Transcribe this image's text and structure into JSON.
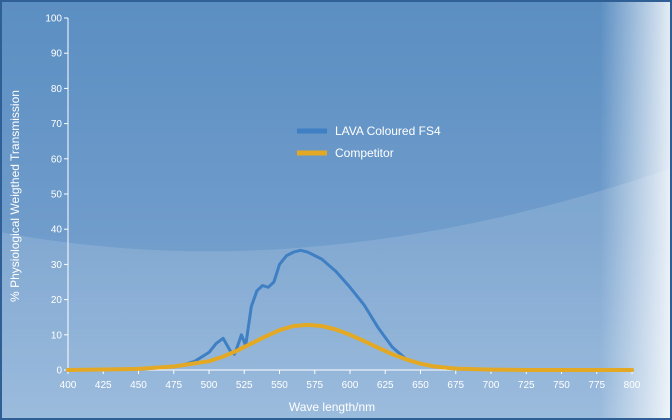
{
  "chart_data": {
    "type": "line",
    "xlabel": "Wave length/nm",
    "ylabel": "% Physiological Weigthed Transmission",
    "xlim": [
      400,
      800
    ],
    "ylim": [
      0,
      100
    ],
    "x_ticks": [
      400,
      425,
      450,
      475,
      500,
      525,
      550,
      575,
      600,
      625,
      650,
      675,
      700,
      725,
      750,
      775,
      800
    ],
    "y_ticks": [
      0,
      10,
      20,
      30,
      40,
      50,
      60,
      70,
      80,
      90,
      100
    ],
    "grid": false,
    "legend_position": "center",
    "series": [
      {
        "name": "LAVA Coloured FS4",
        "color": "#3f7fc4",
        "x": [
          400,
          430,
          460,
          480,
          490,
          500,
          505,
          510,
          515,
          518,
          520,
          523,
          526,
          530,
          534,
          538,
          542,
          546,
          550,
          555,
          560,
          565,
          570,
          575,
          580,
          590,
          600,
          610,
          620,
          630,
          640,
          650,
          660,
          670,
          680,
          700,
          720,
          750,
          800
        ],
        "y": [
          0,
          0.1,
          0.5,
          1.2,
          2.5,
          5.0,
          7.5,
          9.0,
          5.5,
          4.5,
          6.5,
          10.0,
          7.0,
          18.0,
          22.5,
          24.0,
          23.5,
          25.0,
          30.0,
          32.5,
          33.5,
          34.0,
          33.5,
          32.5,
          31.5,
          28.0,
          23.5,
          18.5,
          12.0,
          6.5,
          3.0,
          1.8,
          1.0,
          0.5,
          0.2,
          0.1,
          0,
          0,
          0
        ]
      },
      {
        "name": "Competitor",
        "color": "#e3a925",
        "x": [
          400,
          450,
          475,
          500,
          510,
          520,
          530,
          540,
          550,
          560,
          570,
          580,
          590,
          600,
          610,
          620,
          630,
          640,
          650,
          660,
          675,
          700,
          725,
          750,
          800
        ],
        "y": [
          0,
          0.3,
          1.0,
          2.5,
          3.8,
          5.5,
          7.5,
          9.5,
          11.3,
          12.5,
          12.8,
          12.5,
          11.5,
          10.0,
          8.2,
          6.3,
          4.5,
          3.0,
          1.8,
          1.0,
          0.4,
          0.1,
          0,
          0,
          0
        ]
      }
    ]
  }
}
